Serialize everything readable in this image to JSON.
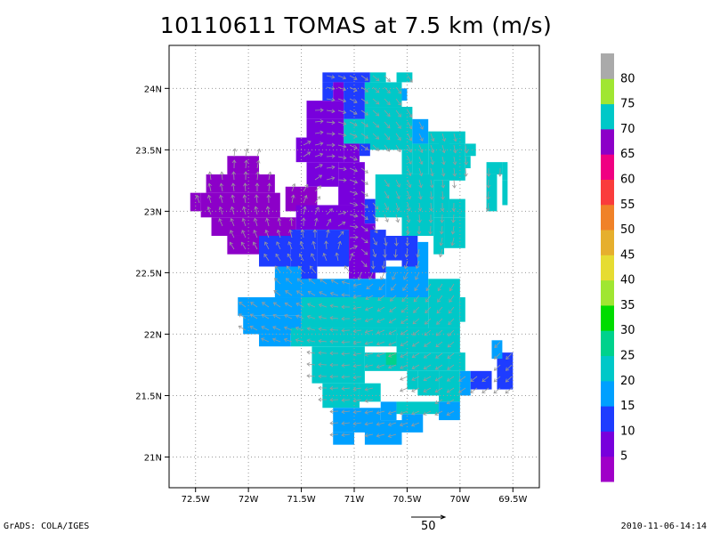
{
  "title": "10110611 TOMAS at 7.5 km (m/s)",
  "footer": {
    "left": "GrADS: COLA/IGES",
    "right": "2010-11-06-14:14"
  },
  "reference_vector": {
    "label": "50",
    "value": 50
  },
  "chart_data": {
    "type": "heatmap",
    "title": "10110611 TOMAS at 7.5 km (m/s)",
    "xlabel": "",
    "ylabel": "",
    "xlim": [
      -72.75,
      -69.25
    ],
    "ylim": [
      20.75,
      24.35
    ],
    "grid": true,
    "x_ticks": [
      {
        "value": -72.5,
        "label": "72.5W"
      },
      {
        "value": -72.0,
        "label": "72W"
      },
      {
        "value": -71.5,
        "label": "71.5W"
      },
      {
        "value": -71.0,
        "label": "71W"
      },
      {
        "value": -70.5,
        "label": "70.5W"
      },
      {
        "value": -70.0,
        "label": "70W"
      },
      {
        "value": -69.5,
        "label": "69.5W"
      }
    ],
    "y_ticks": [
      {
        "value": 21.0,
        "label": "21N"
      },
      {
        "value": 21.5,
        "label": "21.5N"
      },
      {
        "value": 22.0,
        "label": "22N"
      },
      {
        "value": 22.5,
        "label": "22.5N"
      },
      {
        "value": 23.0,
        "label": "23N"
      },
      {
        "value": 23.5,
        "label": "23.5N"
      },
      {
        "value": 24.0,
        "label": "24N"
      }
    ],
    "colorbar": {
      "labels": [
        "5",
        "10",
        "15",
        "20",
        "25",
        "30",
        "35",
        "40",
        "45",
        "50",
        "55",
        "60",
        "65",
        "70",
        "75",
        "80"
      ],
      "colors": [
        "#a000c8",
        "#7800dc",
        "#1e3cff",
        "#00a0ff",
        "#00c8c8",
        "#00d28c",
        "#00dc00",
        "#a0e632",
        "#e6dc32",
        "#e6af2d",
        "#f08228",
        "#fa3c3c",
        "#f00082",
        "#8c00c8",
        "#00c8c8",
        "#a0e632",
        "#aaaaaa"
      ]
    },
    "cells": [
      [
        -71.3,
        24.05,
        -70.85,
        24.13,
        "#1e3cff"
      ],
      [
        -70.85,
        24.05,
        -70.7,
        24.13,
        "#00c8c8"
      ],
      [
        -70.6,
        24.05,
        -70.45,
        24.13,
        "#00c8c8"
      ],
      [
        -71.3,
        23.9,
        -71.2,
        24.05,
        "#1e3cff"
      ],
      [
        -71.2,
        23.9,
        -71.1,
        24.05,
        "#7800dc"
      ],
      [
        -71.1,
        23.75,
        -70.9,
        24.05,
        "#1e3cff"
      ],
      [
        -70.9,
        23.85,
        -70.55,
        24.05,
        "#00c8c8"
      ],
      [
        -70.55,
        23.9,
        -70.5,
        24.0,
        "#00a0ff"
      ],
      [
        -71.45,
        23.75,
        -71.1,
        23.9,
        "#7800dc"
      ],
      [
        -71.3,
        23.7,
        -71.1,
        23.75,
        "#7800dc"
      ],
      [
        -70.9,
        23.5,
        -70.45,
        23.85,
        "#00c8c8"
      ],
      [
        -71.1,
        23.55,
        -70.9,
        23.75,
        "#00c8c8"
      ],
      [
        -70.45,
        23.55,
        -70.3,
        23.75,
        "#00a0ff"
      ],
      [
        -70.3,
        23.55,
        -69.95,
        23.65,
        "#00c8c8"
      ],
      [
        -69.95,
        23.45,
        -69.85,
        23.55,
        "#00c8c8"
      ],
      [
        -71.45,
        23.4,
        -71.1,
        23.75,
        "#7800dc"
      ],
      [
        -71.55,
        23.4,
        -71.45,
        23.6,
        "#7800dc"
      ],
      [
        -71.1,
        23.4,
        -70.95,
        23.55,
        "#7800dc"
      ],
      [
        -70.95,
        23.45,
        -70.85,
        23.55,
        "#1e3cff"
      ],
      [
        -70.55,
        23.3,
        -70.45,
        23.5,
        "#00c8c8"
      ],
      [
        -70.45,
        23.3,
        -70.3,
        23.55,
        "#00c8c8"
      ],
      [
        -70.3,
        23.25,
        -69.95,
        23.55,
        "#00c8c8"
      ],
      [
        -70.2,
        23.5,
        -70.1,
        23.6,
        "#00c8c8"
      ],
      [
        -69.95,
        23.35,
        -69.9,
        23.45,
        "#00c8c8"
      ],
      [
        -69.75,
        23.3,
        -69.6,
        23.4,
        "#00c8c8"
      ],
      [
        -69.6,
        23.25,
        -69.55,
        23.4,
        "#00c8c8"
      ],
      [
        -69.75,
        23.0,
        -69.65,
        23.3,
        "#00c8c8"
      ],
      [
        -69.6,
        23.05,
        -69.55,
        23.25,
        "#00c8c8"
      ],
      [
        -72.2,
        23.3,
        -71.9,
        23.45,
        "#8c00c8"
      ],
      [
        -72.4,
        23.15,
        -71.75,
        23.3,
        "#8c00c8"
      ],
      [
        -72.45,
        22.95,
        -71.7,
        23.15,
        "#8c00c8"
      ],
      [
        -72.55,
        23.0,
        -72.45,
        23.15,
        "#8c00c8"
      ],
      [
        -72.35,
        22.8,
        -71.65,
        22.95,
        "#8c00c8"
      ],
      [
        -72.2,
        22.65,
        -71.85,
        22.8,
        "#8c00c8"
      ],
      [
        -71.7,
        22.75,
        -71.55,
        22.95,
        "#8c00c8"
      ],
      [
        -71.65,
        23.0,
        -71.35,
        23.2,
        "#8c00c8"
      ],
      [
        -71.45,
        23.2,
        -71.15,
        23.4,
        "#7800dc"
      ],
      [
        -71.55,
        22.85,
        -70.9,
        23.05,
        "#7800dc"
      ],
      [
        -71.15,
        23.05,
        -70.9,
        23.4,
        "#7800dc"
      ],
      [
        -70.9,
        22.9,
        -70.8,
        23.1,
        "#1e3cff"
      ],
      [
        -70.8,
        22.95,
        -70.55,
        23.3,
        "#00c8c8"
      ],
      [
        -70.55,
        22.8,
        -70.25,
        23.3,
        "#00c8c8"
      ],
      [
        -70.25,
        22.95,
        -70.1,
        23.25,
        "#00c8c8"
      ],
      [
        -70.25,
        22.65,
        -70.15,
        22.95,
        "#00c8c8"
      ],
      [
        -70.1,
        22.95,
        -69.95,
        23.1,
        "#00c8c8"
      ],
      [
        -70.15,
        22.7,
        -69.95,
        22.95,
        "#00c8c8"
      ],
      [
        -71.9,
        22.55,
        -71.6,
        22.8,
        "#1e3cff"
      ],
      [
        -71.6,
        22.4,
        -71.35,
        22.85,
        "#1e3cff"
      ],
      [
        -71.35,
        22.55,
        -71.05,
        22.85,
        "#1e3cff"
      ],
      [
        -71.05,
        22.45,
        -70.8,
        22.9,
        "#7800dc"
      ],
      [
        -70.85,
        22.5,
        -70.7,
        22.85,
        "#1e3cff"
      ],
      [
        -70.7,
        22.6,
        -70.55,
        22.8,
        "#1e3cff"
      ],
      [
        -70.55,
        22.55,
        -70.4,
        22.8,
        "#1e3cff"
      ],
      [
        -70.4,
        22.55,
        -70.3,
        22.75,
        "#00a0ff"
      ],
      [
        -71.75,
        22.3,
        -71.5,
        22.55,
        "#00a0ff"
      ],
      [
        -71.5,
        22.3,
        -71.05,
        22.45,
        "#00a0ff"
      ],
      [
        -71.05,
        22.3,
        -70.7,
        22.45,
        "#00a0ff"
      ],
      [
        -70.7,
        22.3,
        -70.3,
        22.55,
        "#00a0ff"
      ],
      [
        -70.3,
        22.3,
        -70.0,
        22.45,
        "#00c8c8"
      ],
      [
        -72.1,
        22.15,
        -71.5,
        22.3,
        "#00a0ff"
      ],
      [
        -72.05,
        22.0,
        -71.5,
        22.15,
        "#00a0ff"
      ],
      [
        -71.9,
        21.9,
        -71.6,
        22.0,
        "#00a0ff"
      ],
      [
        -71.5,
        22.05,
        -71.0,
        22.3,
        "#00c8c8"
      ],
      [
        -71.0,
        22.05,
        -70.3,
        22.3,
        "#00c8c8"
      ],
      [
        -70.3,
        22.05,
        -70.0,
        22.3,
        "#00c8c8"
      ],
      [
        -70.0,
        22.1,
        -69.95,
        22.3,
        "#00c8c8"
      ],
      [
        -71.6,
        21.9,
        -70.6,
        22.05,
        "#00c8c8"
      ],
      [
        -70.6,
        21.85,
        -70.0,
        22.05,
        "#00c8c8"
      ],
      [
        -71.4,
        21.6,
        -70.9,
        21.9,
        "#00c8c8"
      ],
      [
        -70.9,
        21.7,
        -70.5,
        21.85,
        "#00c8c8"
      ],
      [
        -70.5,
        21.7,
        -70.1,
        21.85,
        "#00c8c8"
      ],
      [
        -70.1,
        21.7,
        -69.95,
        21.85,
        "#00c8c8"
      ],
      [
        -70.7,
        21.75,
        -70.6,
        21.85,
        "#00d28c"
      ],
      [
        -71.3,
        21.4,
        -70.95,
        21.6,
        "#00c8c8"
      ],
      [
        -70.95,
        21.45,
        -70.75,
        21.6,
        "#00c8c8"
      ],
      [
        -70.5,
        21.55,
        -70.4,
        21.7,
        "#00c8c8"
      ],
      [
        -70.4,
        21.5,
        -70.2,
        21.7,
        "#00c8c8"
      ],
      [
        -70.2,
        21.45,
        -70.0,
        21.7,
        "#00c8c8"
      ],
      [
        -70.0,
        21.5,
        -69.9,
        21.7,
        "#00a0ff"
      ],
      [
        -69.9,
        21.55,
        -69.7,
        21.7,
        "#1e3cff"
      ],
      [
        -69.65,
        21.55,
        -69.5,
        21.85,
        "#1e3cff"
      ],
      [
        -69.7,
        21.8,
        -69.6,
        21.95,
        "#00a0ff"
      ],
      [
        -71.2,
        21.2,
        -70.75,
        21.4,
        "#00a0ff"
      ],
      [
        -70.75,
        21.3,
        -70.6,
        21.45,
        "#00a0ff"
      ],
      [
        -70.6,
        21.35,
        -70.2,
        21.45,
        "#00c8c8"
      ],
      [
        -70.2,
        21.3,
        -70.0,
        21.45,
        "#00a0ff"
      ],
      [
        -71.2,
        21.1,
        -71.0,
        21.2,
        "#00a0ff"
      ],
      [
        -70.9,
        21.1,
        -70.55,
        21.3,
        "#00a0ff"
      ],
      [
        -70.55,
        21.2,
        -70.35,
        21.35,
        "#00a0ff"
      ]
    ]
  }
}
